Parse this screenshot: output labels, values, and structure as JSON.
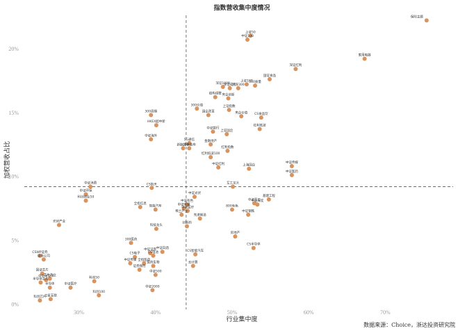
{
  "chart_data": {
    "type": "scatter",
    "title": "指数营收集中度情况",
    "xlabel": "行业集中度",
    "ylabel": "加权营收占比",
    "source": "数据来源：Choice，浙达投资研究院",
    "xlim": [
      0.235,
      0.785
    ],
    "ylim": [
      -0.004,
      0.226
    ],
    "xticks": [
      {
        "v": 0.3,
        "label": "30%"
      },
      {
        "v": 0.4,
        "label": "40%"
      },
      {
        "v": 0.5,
        "label": "50%"
      },
      {
        "v": 0.6,
        "label": "60%"
      },
      {
        "v": 0.7,
        "label": "70%"
      }
    ],
    "yticks": [
      {
        "v": 0.0,
        "label": "0%"
      },
      {
        "v": 0.05,
        "label": "5%"
      },
      {
        "v": 0.1,
        "label": "10%"
      },
      {
        "v": 0.15,
        "label": "15%"
      },
      {
        "v": 0.2,
        "label": "20%"
      }
    ],
    "ref_x": 0.44,
    "ref_y": 0.092,
    "marker_color": "#d8935e",
    "points": [
      {
        "label": "保险主题",
        "x": 0.754,
        "y": 0.222
      },
      {
        "label": "中证100",
        "x": 0.52,
        "y": 0.207
      },
      {
        "label": "上证50",
        "x": 0.524,
        "y": 0.21
      },
      {
        "label": "家用电器",
        "x": 0.673,
        "y": 0.192
      },
      {
        "label": "深证红利",
        "x": 0.583,
        "y": 0.184
      },
      {
        "label": "国证食品",
        "x": 0.549,
        "y": 0.176
      },
      {
        "label": "上证180",
        "x": 0.519,
        "y": 0.172
      },
      {
        "label": "500质量",
        "x": 0.53,
        "y": 0.171
      },
      {
        "label": "深证100R",
        "x": 0.488,
        "y": 0.17
      },
      {
        "label": "深证成指",
        "x": 0.497,
        "y": 0.169
      },
      {
        "label": "沪深300",
        "x": 0.508,
        "y": 0.169
      },
      {
        "label": "结构调整",
        "x": 0.478,
        "y": 0.162
      },
      {
        "label": "央企创新",
        "x": 0.495,
        "y": 0.161
      },
      {
        "label": "300价值",
        "x": 0.454,
        "y": 0.153
      },
      {
        "label": "上证指数",
        "x": 0.496,
        "y": 0.152
      },
      {
        "label": "国企改革",
        "x": 0.469,
        "y": 0.148
      },
      {
        "label": "央企价值",
        "x": 0.512,
        "y": 0.147
      },
      {
        "label": "CS食品饮",
        "x": 0.538,
        "y": 0.146
      },
      {
        "label": "300周期",
        "x": 0.394,
        "y": 0.148
      },
      {
        "label": "HKEX超中新",
        "x": 0.401,
        "y": 0.14
      },
      {
        "label": "红利低波",
        "x": 0.536,
        "y": 0.137
      },
      {
        "label": "中证银行",
        "x": 0.475,
        "y": 0.135
      },
      {
        "label": "上证国企",
        "x": 0.493,
        "y": 0.133
      },
      {
        "label": "中证海外",
        "x": 0.394,
        "y": 0.129
      },
      {
        "label": "5G通信",
        "x": 0.444,
        "y": 0.126
      },
      {
        "label": "金融地产",
        "x": 0.472,
        "y": 0.125
      },
      {
        "label": "新能源车",
        "x": 0.436,
        "y": 0.122
      },
      {
        "label": "CS新能车",
        "x": 0.444,
        "y": 0.122
      },
      {
        "label": "红利指数",
        "x": 0.494,
        "y": 0.12
      },
      {
        "label": "红利低波100",
        "x": 0.472,
        "y": 0.115
      },
      {
        "label": "中证传媒",
        "x": 0.578,
        "y": 0.108
      },
      {
        "label": "上海国企",
        "x": 0.522,
        "y": 0.106
      },
      {
        "label": "中证红利",
        "x": 0.482,
        "y": 0.107
      },
      {
        "label": "中证医药",
        "x": 0.578,
        "y": 0.101
      },
      {
        "label": "中证消费",
        "x": 0.315,
        "y": 0.092
      },
      {
        "label": "CS航天",
        "x": 0.395,
        "y": 0.091
      },
      {
        "label": "军工龙头",
        "x": 0.501,
        "y": 0.092
      },
      {
        "label": "中证环保",
        "x": 0.309,
        "y": 0.086
      },
      {
        "label": "中证光伏",
        "x": 0.451,
        "y": 0.084
      },
      {
        "label": "科创创业50",
        "x": 0.309,
        "y": 0.081
      },
      {
        "label": "基建工程",
        "x": 0.548,
        "y": 0.082
      },
      {
        "label": "中证军工",
        "x": 0.529,
        "y": 0.079
      },
      {
        "label": "全指信息",
        "x": 0.38,
        "y": 0.076
      },
      {
        "label": "中证传播",
        "x": 0.437,
        "y": 0.075
      },
      {
        "label": "中证有色",
        "x": 0.441,
        "y": 0.078
      },
      {
        "label": "中证医疗",
        "x": 0.442,
        "y": 0.073
      },
      {
        "label": "智能汽车",
        "x": 0.4,
        "y": 0.074
      },
      {
        "label": "中证煤炭",
        "x": 0.533,
        "y": 0.078
      },
      {
        "label": "800有色",
        "x": 0.5,
        "y": 0.074
      },
      {
        "label": "稀土产业",
        "x": 0.434,
        "y": 0.07
      },
      {
        "label": "中证钢铁",
        "x": 0.521,
        "y": 0.07
      },
      {
        "label": "先进制造",
        "x": 0.458,
        "y": 0.067
      },
      {
        "label": "光伏产业",
        "x": 0.274,
        "y": 0.062
      },
      {
        "label": "创新药",
        "x": 0.441,
        "y": 0.061
      },
      {
        "label": "科技龙头",
        "x": 0.401,
        "y": 0.059
      },
      {
        "label": "房地产",
        "x": 0.504,
        "y": 0.053
      },
      {
        "label": "300医药",
        "x": 0.368,
        "y": 0.048
      },
      {
        "label": "CS半导体",
        "x": 0.528,
        "y": 0.044
      },
      {
        "label": "中证白酒",
        "x": 0.409,
        "y": 0.041
      },
      {
        "label": "中证证券",
        "x": 0.393,
        "y": 0.04
      },
      {
        "label": "CS电子",
        "x": 0.373,
        "y": 0.037
      },
      {
        "label": "CS电池",
        "x": 0.397,
        "y": 0.038
      },
      {
        "label": "CS智能汽车",
        "x": 0.452,
        "y": 0.039
      },
      {
        "label": "CSWP证券",
        "x": 0.249,
        "y": 0.038
      },
      {
        "label": "证券公司",
        "x": 0.254,
        "y": 0.035
      },
      {
        "label": "全指医药",
        "x": 0.385,
        "y": 0.032
      },
      {
        "label": "中证传媒",
        "x": 0.367,
        "y": 0.032
      },
      {
        "label": "医药生物",
        "x": 0.397,
        "y": 0.03
      },
      {
        "label": "证券保险",
        "x": 0.379,
        "y": 0.027
      },
      {
        "label": "云计算",
        "x": 0.449,
        "y": 0.03
      },
      {
        "label": "中证500",
        "x": 0.4,
        "y": 0.023
      },
      {
        "label": "国证芯片",
        "x": 0.252,
        "y": 0.024
      },
      {
        "label": "芯片产业",
        "x": 0.262,
        "y": 0.02
      },
      {
        "label": "中华半导体",
        "x": 0.257,
        "y": 0.019
      },
      {
        "label": "半导体芯片",
        "x": 0.25,
        "y": 0.017
      },
      {
        "label": "科创50",
        "x": 0.32,
        "y": 0.018
      },
      {
        "label": "中证医疗",
        "x": 0.289,
        "y": 0.013
      },
      {
        "label": "半导体",
        "x": 0.262,
        "y": 0.013
      },
      {
        "label": "中证2000",
        "x": 0.396,
        "y": 0.011
      },
      {
        "label": "科创100",
        "x": 0.326,
        "y": 0.007
      },
      {
        "label": "卫星互联",
        "x": 0.263,
        "y": 0.004
      },
      {
        "label": "科创芯片",
        "x": 0.249,
        "y": 0.003
      }
    ]
  }
}
